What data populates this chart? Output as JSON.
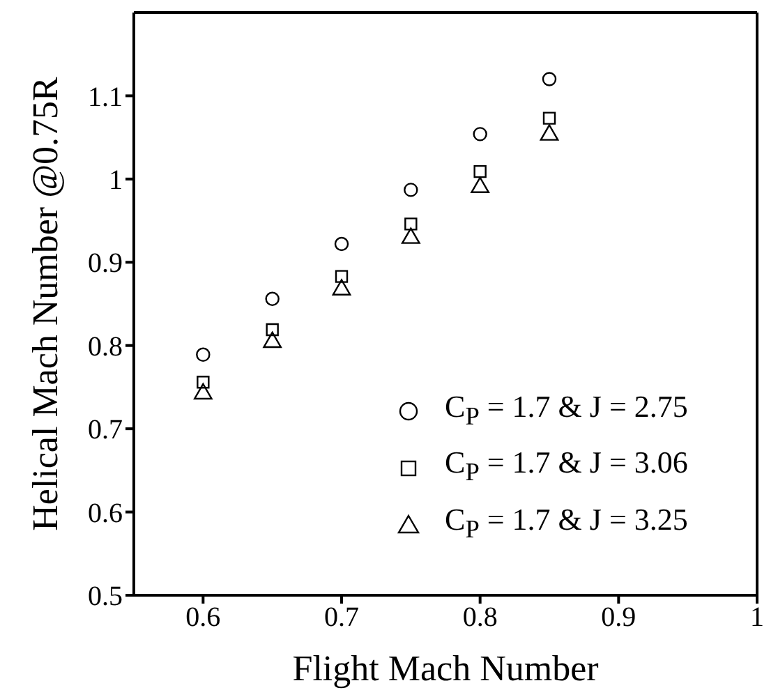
{
  "chart_data": {
    "type": "scatter",
    "xlabel": "Flight Mach Number",
    "ylabel": "Helical Mach Number @0.75R",
    "x": [
      0.6,
      0.65,
      0.7,
      0.75,
      0.8,
      0.85
    ],
    "series": [
      {
        "name": "C$_{P}$ = 1.7 & J = 2.75",
        "color": "#000000",
        "marker": "circle",
        "values": [
          0.789,
          0.856,
          0.922,
          0.987,
          1.054,
          1.12
        ]
      },
      {
        "name": "C$_{P}$ = 1.7 & J = 3.06",
        "color": "#000000",
        "marker": "square",
        "values": [
          0.756,
          0.819,
          0.883,
          0.946,
          1.009,
          1.073
        ]
      },
      {
        "name": "C$_{P}$ = 1.7 & J = 3.25",
        "color": "#000000",
        "marker": "triangle",
        "values": [
          0.742,
          0.804,
          0.867,
          0.929,
          0.99,
          1.053
        ]
      }
    ],
    "xlim": [
      0.55,
      1
    ],
    "xticks": [
      0.6,
      0.7,
      0.8,
      0.9,
      1
    ],
    "ylim": [
      0.5,
      1.2
    ],
    "yticks": [
      0.5,
      0.6,
      0.7,
      0.8,
      0.9,
      1,
      1.1
    ],
    "legend": "bottom right"
  }
}
